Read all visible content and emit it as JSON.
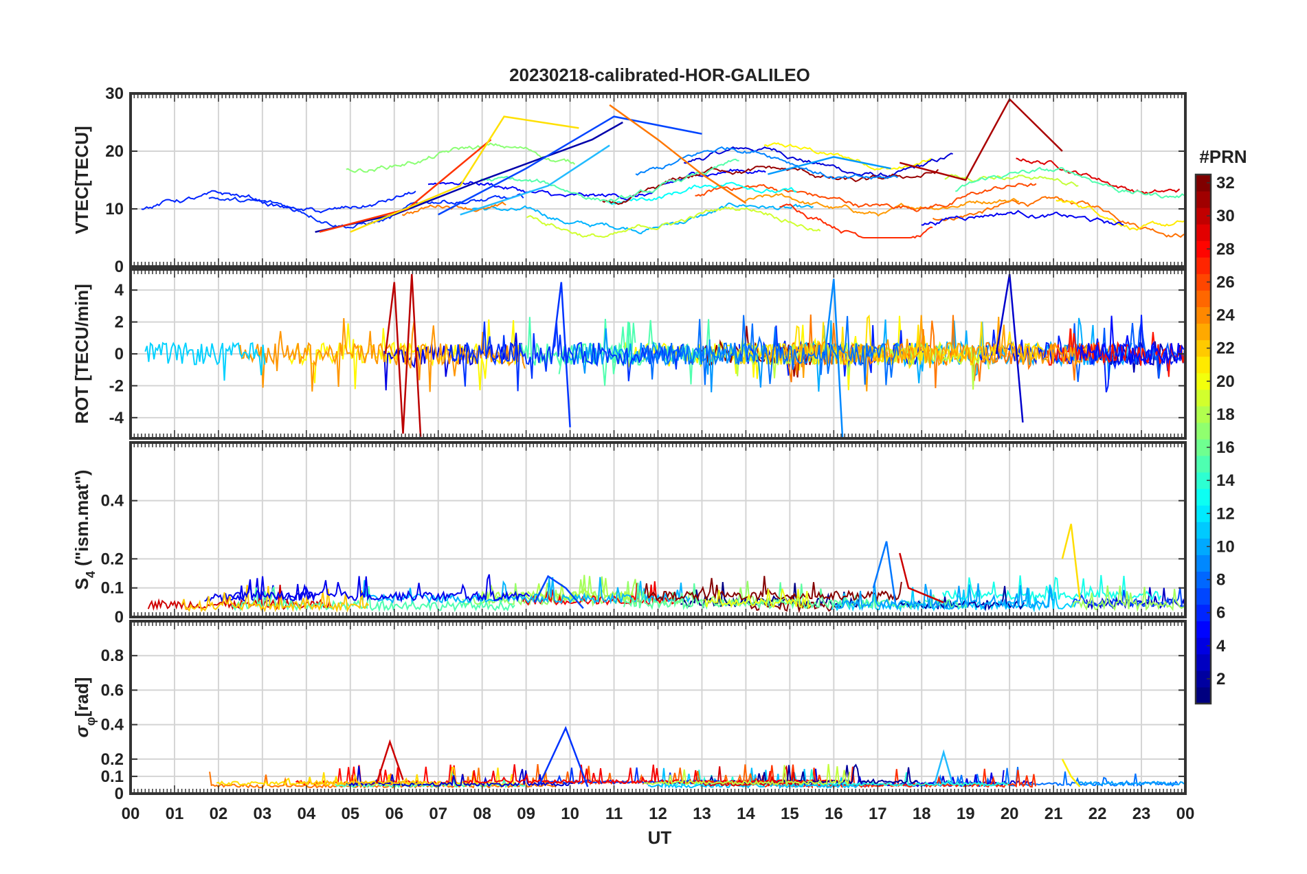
{
  "title": "20230218-calibrated-HOR-GALILEO",
  "xlabel": "UT",
  "x_tick_labels": [
    "00",
    "01",
    "02",
    "03",
    "04",
    "05",
    "06",
    "07",
    "08",
    "09",
    "10",
    "11",
    "12",
    "13",
    "14",
    "15",
    "16",
    "17",
    "18",
    "19",
    "20",
    "21",
    "22",
    "23",
    "00"
  ],
  "colorbar": {
    "title": "#PRN",
    "range": [
      1,
      32
    ],
    "tick_labels": [
      "2",
      "4",
      "6",
      "8",
      "10",
      "12",
      "14",
      "16",
      "18",
      "20",
      "22",
      "24",
      "26",
      "28",
      "30",
      "32"
    ]
  },
  "chart_data": [
    {
      "id": "vtec",
      "type": "line",
      "ylabel": "VTEC[TECU]",
      "ylim": [
        0,
        30
      ],
      "yticks": [
        0,
        10,
        20,
        30
      ],
      "ytick_labels": [
        "0",
        "10",
        "20",
        "30"
      ],
      "series": [
        {
          "prn": 3,
          "color": "#0000aa",
          "x": [
            4.2,
            6,
            8,
            10.5,
            11.2
          ],
          "y": [
            6,
            9,
            15,
            22,
            25
          ]
        },
        {
          "prn": 7,
          "color": "#0044ff",
          "x": [
            7,
            9,
            11,
            13
          ],
          "y": [
            9,
            17,
            26,
            23
          ]
        },
        {
          "prn": 27,
          "color": "#ff3300",
          "x": [
            4.3,
            6.3,
            8.2
          ],
          "y": [
            6,
            10,
            22
          ]
        },
        {
          "prn": 21,
          "color": "#ffe000",
          "x": [
            5.0,
            7.5,
            8.5,
            10.2
          ],
          "y": [
            6,
            14,
            26,
            24
          ]
        },
        {
          "prn": 11,
          "color": "#22bbff",
          "x": [
            7.5,
            9.5,
            10.9
          ],
          "y": [
            9,
            14,
            21
          ]
        },
        {
          "prn": 24,
          "color": "#ff7700",
          "x": [
            10.9,
            12,
            13,
            14
          ],
          "y": [
            28,
            22,
            16,
            11
          ]
        },
        {
          "prn": 10,
          "color": "#0099ff",
          "x": [
            14.5,
            16,
            17.3
          ],
          "y": [
            16,
            19,
            17
          ]
        },
        {
          "prn": 32,
          "color": "#aa0000",
          "x": [
            17.5,
            19,
            20,
            21.2
          ],
          "y": [
            18,
            15,
            29,
            20
          ]
        }
      ]
    },
    {
      "id": "rot",
      "type": "line",
      "ylabel": "ROT [TECU/min]",
      "ylim": [
        -5.3,
        5.3
      ],
      "yticks": [
        -4,
        -2,
        0,
        2,
        4
      ],
      "ytick_labels": [
        "-4",
        "-2",
        "0",
        "2",
        "4"
      ],
      "series": [
        {
          "prn": 31,
          "color": "#bb0000",
          "x": [
            5.8,
            6.0,
            6.2,
            6.4,
            6.6
          ],
          "y": [
            0,
            4.5,
            -5.0,
            5.0,
            -5.2
          ]
        },
        {
          "prn": 5,
          "color": "#0033ff",
          "x": [
            9.6,
            9.8,
            10.0
          ],
          "y": [
            0,
            4.5,
            -4.6
          ]
        },
        {
          "prn": 9,
          "color": "#0088ff",
          "x": [
            15.8,
            16.0,
            16.2
          ],
          "y": [
            0,
            4.7,
            -5.3
          ]
        },
        {
          "prn": 4,
          "color": "#0000cc",
          "x": [
            19.7,
            20.0,
            20.3
          ],
          "y": [
            0,
            5.0,
            -4.3
          ]
        }
      ]
    },
    {
      "id": "s4",
      "type": "line",
      "ylabel": "S4 (\"ism.mat\")",
      "ylabel_main": "S",
      "ylabel_sub": "4",
      "ylabel_rest": " (\"ism.mat\")",
      "ylim": [
        0,
        0.6
      ],
      "yticks": [
        0,
        0.1,
        0.2,
        0.4
      ],
      "ytick_labels": [
        "0",
        "0.1",
        "0.2",
        "0.4"
      ],
      "series": [
        {
          "prn": 5,
          "color": "#0044ff",
          "x": [
            9.2,
            9.5,
            9.9,
            10.3
          ],
          "y": [
            0.05,
            0.14,
            0.1,
            0.03
          ]
        },
        {
          "prn": 20,
          "color": "#ffdd00",
          "x": [
            21.2,
            21.4,
            21.6
          ],
          "y": [
            0.2,
            0.32,
            0.06
          ]
        },
        {
          "prn": 31,
          "color": "#cc0000",
          "x": [
            17.5,
            17.7,
            18.5
          ],
          "y": [
            0.22,
            0.1,
            0.05
          ]
        },
        {
          "prn": 8,
          "color": "#0077ff",
          "x": [
            16.9,
            17.2,
            17.4
          ],
          "y": [
            0.1,
            0.26,
            0.05
          ]
        }
      ]
    },
    {
      "id": "sigma",
      "type": "line",
      "ylabel": "σφ[rad]",
      "ylabel_main": "σ",
      "ylabel_sub": "φ",
      "ylabel_rest": "[rad]",
      "ylim": [
        0,
        1
      ],
      "yticks": [
        0,
        0.1,
        0.2,
        0.4,
        0.6,
        0.8
      ],
      "ytick_labels": [
        "0",
        "0.1",
        "0.2",
        "0.4",
        "0.6",
        "0.8"
      ],
      "series": [
        {
          "prn": 5,
          "color": "#0033ff",
          "x": [
            9.3,
            9.9,
            10.4
          ],
          "y": [
            0.05,
            0.38,
            0.04
          ]
        },
        {
          "prn": 30,
          "color": "#cc0000",
          "x": [
            5.6,
            5.9,
            6.2
          ],
          "y": [
            0.06,
            0.3,
            0.08
          ]
        },
        {
          "prn": 11,
          "color": "#22bbff",
          "x": [
            18.3,
            18.5,
            18.7
          ],
          "y": [
            0.06,
            0.24,
            0.06
          ]
        },
        {
          "prn": 19,
          "color": "#ffee00",
          "x": [
            21.2,
            21.4,
            21.6
          ],
          "y": [
            0.2,
            0.1,
            0.04
          ]
        }
      ]
    }
  ]
}
